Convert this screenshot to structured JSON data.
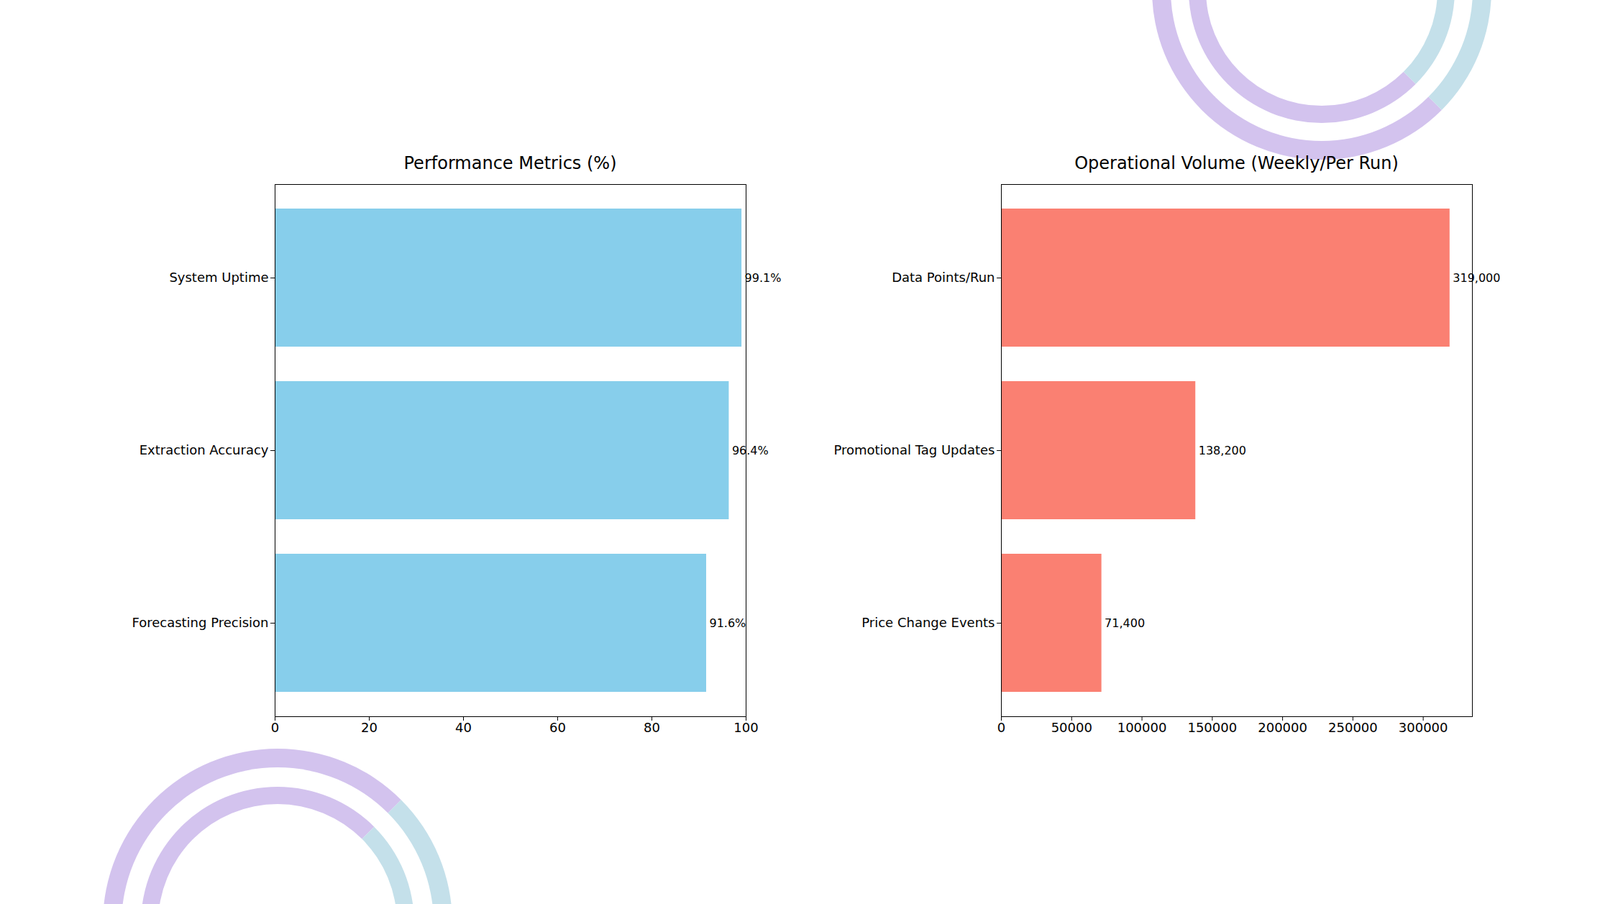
{
  "chart_data": [
    {
      "type": "bar",
      "orientation": "horizontal",
      "title": "Performance Metrics (%)",
      "categories": [
        "System Uptime",
        "Extraction Accuracy",
        "Forecasting Precision"
      ],
      "values": [
        99.1,
        96.4,
        91.6
      ],
      "value_labels": [
        "99.1%",
        "96.4%",
        "91.6%"
      ],
      "data_labels": true,
      "color": "#87ceeb",
      "xlim": [
        0,
        100
      ],
      "xticks": [
        0,
        20,
        40,
        60,
        80,
        100
      ]
    },
    {
      "type": "bar",
      "orientation": "horizontal",
      "title": "Operational Volume (Weekly/Per Run)",
      "categories": [
        "Data Points/Run",
        "Promotional Tag Updates",
        "Price Change Events"
      ],
      "values": [
        319000,
        138200,
        71400
      ],
      "value_labels": [
        "319,000",
        "138,200",
        "71,400"
      ],
      "data_labels": true,
      "color": "#fa8072",
      "xlim": [
        0,
        334950
      ],
      "xticks": [
        0,
        50000,
        100000,
        150000,
        200000,
        250000,
        300000
      ]
    }
  ]
}
